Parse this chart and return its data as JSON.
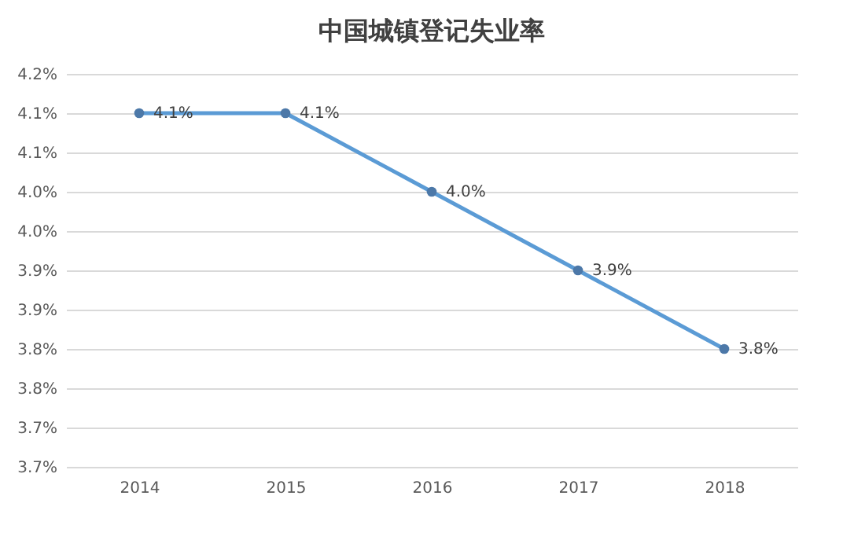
{
  "chart_data": {
    "type": "line",
    "title": "中国城镇登记失业率",
    "categories": [
      "2014",
      "2015",
      "2016",
      "2017",
      "2018"
    ],
    "values": [
      4.15,
      4.15,
      4.05,
      3.95,
      3.85
    ],
    "value_labels": [
      "4.1%",
      "4.1%",
      "4.0%",
      "3.9%",
      "3.8%"
    ],
    "color": "#5b9bd5",
    "marker": "circle",
    "grid": "y",
    "ylim": [
      3.7,
      4.2
    ],
    "yticks": [
      {
        "value": 3.7,
        "label": "3.7%"
      },
      {
        "value": 3.75,
        "label": "3.7%"
      },
      {
        "value": 3.8,
        "label": "3.8%"
      },
      {
        "value": 3.85,
        "label": "3.8%"
      },
      {
        "value": 3.9,
        "label": "3.9%"
      },
      {
        "value": 3.95,
        "label": "3.9%"
      },
      {
        "value": 4.0,
        "label": "4.0%"
      },
      {
        "value": 4.05,
        "label": "4.0%"
      },
      {
        "value": 4.1,
        "label": "4.1%"
      },
      {
        "value": 4.15,
        "label": "4.1%"
      },
      {
        "value": 4.2,
        "label": "4.2%"
      }
    ]
  }
}
